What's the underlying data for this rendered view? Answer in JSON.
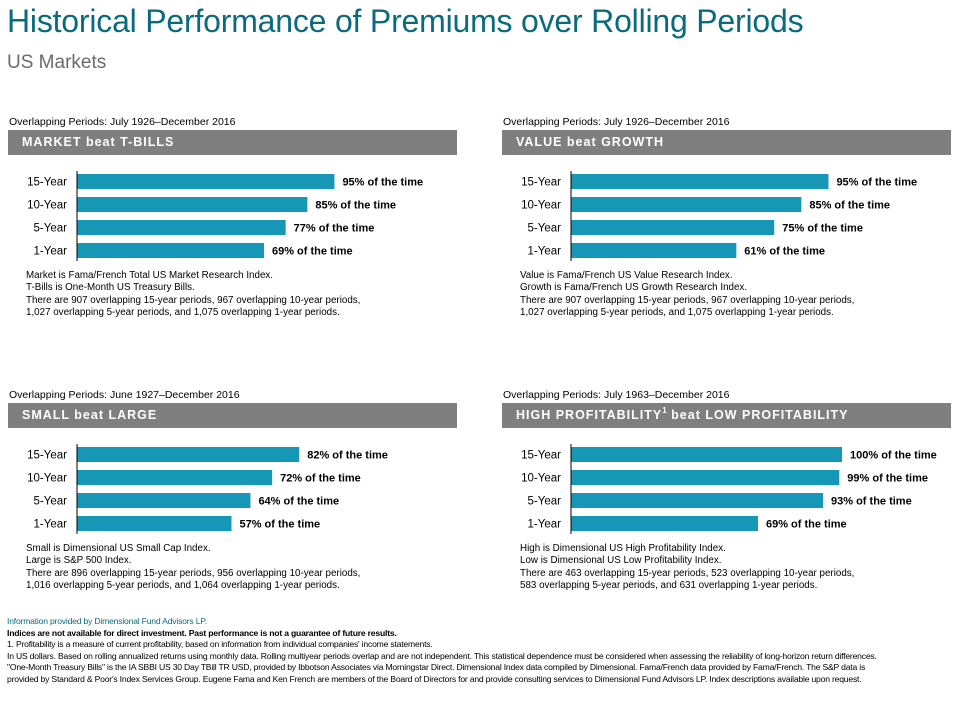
{
  "header": {
    "title": "Historical Performance of Premiums over Rolling Periods",
    "subtitle": "US Markets"
  },
  "colors": {
    "bar": "#1797b6",
    "banner": "#7f7f7f",
    "title": "#0b6b7d"
  },
  "panels": [
    {
      "period": "Overlapping Periods: July 1926–December 2016",
      "banner": "MARKET  beat T-BILLS",
      "banner_sup": "",
      "notes": [
        "Market is Fama/French Total US Market Research Index.",
        "T-Bills is One-Month US Treasury Bills.",
        "There are 907 overlapping 15-year periods, 967 overlapping 10-year periods,",
        "1,027 overlapping 5-year periods, and 1,075 overlapping 1-year periods."
      ]
    },
    {
      "period": "Overlapping Periods: July 1926–December 2016",
      "banner": "VALUE  beat GROWTH",
      "banner_sup": "",
      "notes": [
        "Value is Fama/French US Value Research Index.",
        "Growth is Fama/French US Growth Research Index.",
        "There are 907 overlapping 15-year periods, 967 overlapping 10-year periods,",
        "1,027 overlapping 5-year periods, and 1,075 overlapping 1-year periods."
      ]
    },
    {
      "period": "Overlapping Periods: June 1927–December 2016",
      "banner": "SMALL  beat LARGE",
      "banner_sup": "",
      "notes": [
        "Small is Dimensional US Small Cap Index.",
        "Large is S&P 500 Index.",
        "There are 896 overlapping 15-year periods, 956 overlapping 10-year periods,",
        "1,016 overlapping 5-year periods, and 1,064 overlapping 1-year periods."
      ]
    },
    {
      "period": "Overlapping Periods: July 1963–December 2016",
      "banner": "HIGH  PROFITABILITY",
      "banner_sup": "1",
      "banner_tail": " beat LOW PROFITABILITY",
      "notes": [
        "High is Dimensional US High Profitability Index.",
        "Low is Dimensional US Low Profitability Index.",
        "There are 463 overlapping 15-year periods, 523 overlapping 10-year periods,",
        "583 overlapping 5-year periods, and 631 overlapping 1-year periods."
      ]
    }
  ],
  "chart_data": [
    {
      "type": "bar",
      "orientation": "horizontal",
      "categories": [
        "15-Year",
        "10-Year",
        "5-Year",
        "1-Year"
      ],
      "values": [
        95,
        85,
        77,
        69
      ],
      "data_labels": [
        "95% of the time",
        "85% of the time",
        "77% of the time",
        "69% of the time"
      ],
      "xlim": [
        0,
        100
      ]
    },
    {
      "type": "bar",
      "orientation": "horizontal",
      "categories": [
        "15-Year",
        "10-Year",
        "5-Year",
        "1-Year"
      ],
      "values": [
        95,
        85,
        75,
        61
      ],
      "data_labels": [
        "95% of the time",
        "85% of the time",
        "75% of the time",
        "61% of the time"
      ],
      "xlim": [
        0,
        100
      ]
    },
    {
      "type": "bar",
      "orientation": "horizontal",
      "categories": [
        "15-Year",
        "10-Year",
        "5-Year",
        "1-Year"
      ],
      "values": [
        82,
        72,
        64,
        57
      ],
      "data_labels": [
        "82% of the time",
        "72% of the time",
        "64% of the time",
        "57% of the time"
      ],
      "xlim": [
        0,
        100
      ]
    },
    {
      "type": "bar",
      "orientation": "horizontal",
      "categories": [
        "15-Year",
        "10-Year",
        "5-Year",
        "1-Year"
      ],
      "values": [
        100,
        99,
        93,
        69
      ],
      "data_labels": [
        "100% of the time",
        "99% of the time",
        "93% of the time",
        "69% of the time"
      ],
      "xlim": [
        0,
        100
      ]
    }
  ],
  "footer": {
    "source": "Information provided by Dimensional Fund Advisors LP.",
    "disclaimer": "Indices are not available for direct investment. Past performance is not a guarantee of future results.",
    "note1": "1. Profitability is a measure of current profitability, based on information from individual companies' income statements.",
    "line4": "In US dollars. Based on rolling annualized returns using monthly data. Rolling multiyear periods overlap and are not independent. This statistical dependence must be considered when assessing the reliability of long-horizon return differences.",
    "line5": "\"One-Month Treasury Bills\" is the IA SBBI US 30 Day TBill TR USD, provided by Ibbotson Associates via Morningstar Direct. Dimensional Index data compiled by Dimensional. Fama/French data provided by Fama/French. The S&P data is",
    "line6": "provided by Standard & Poor's Index Services Group. Eugene Fama and Ken French are members of the Board of Directors for and provide consulting services to Dimensional Fund Advisors LP. Index descriptions available upon request."
  }
}
